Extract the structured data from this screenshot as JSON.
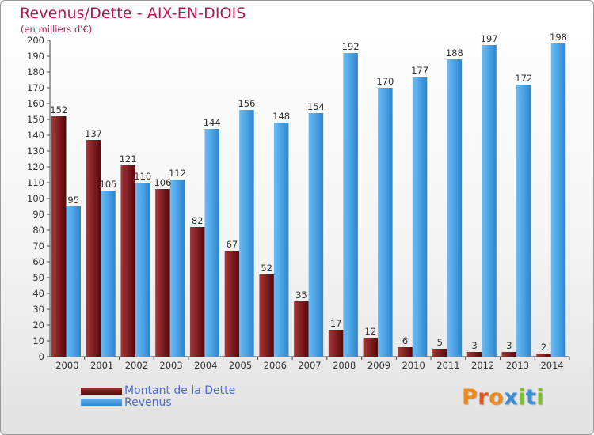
{
  "title": "Revenus/Dette - AIX-EN-DIOIS",
  "subtitle": "(en milliers d'€)",
  "chart_data": {
    "type": "bar",
    "title": "Revenus/Dette - AIX-EN-DIOIS",
    "ylabel": "(en milliers d'€)",
    "xlabel": "",
    "ylim": [
      0,
      200
    ],
    "ytick_step": 10,
    "grid": false,
    "categories": [
      "2000",
      "2001",
      "2002",
      "2003",
      "2004",
      "2005",
      "2006",
      "2007",
      "2008",
      "2009",
      "2010",
      "2011",
      "2012",
      "2013",
      "2014"
    ],
    "series": [
      {
        "name": "Montant de la Dette",
        "color": "#7a1f22",
        "values": [
          152,
          137,
          121,
          106,
          82,
          67,
          52,
          35,
          17,
          12,
          6,
          5,
          3,
          3,
          2
        ]
      },
      {
        "name": "Revenus",
        "color": "#4aa3e6",
        "values": [
          95,
          105,
          110,
          112,
          144,
          156,
          148,
          154,
          192,
          170,
          177,
          188,
          197,
          172,
          198
        ]
      }
    ]
  },
  "legend": {
    "debt_label": "Montant de la Dette",
    "revenue_label": "Revenus"
  },
  "logo_text": "Proxiti"
}
